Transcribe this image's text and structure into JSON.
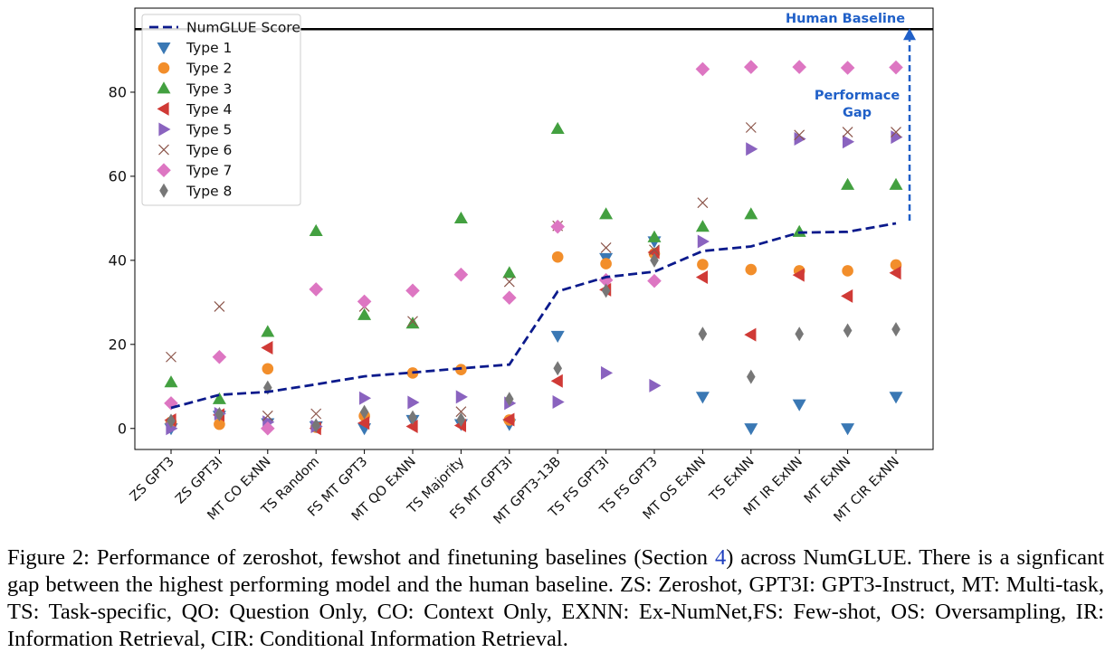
{
  "chart_data": {
    "type": "scatter",
    "categories": [
      "ZS GPT3",
      "ZS GPT3I",
      "MT CO ExNN",
      "TS Random",
      "FS MT GPT3",
      "MT QO ExNN",
      "TS Majority",
      "FS MT GPT3I",
      "MT GPT3-13B",
      "TS FS GPT3I",
      "TS FS GPT3",
      "MT OS ExNN",
      "TS ExNN",
      "MT IR ExNN",
      "MT ExNN",
      "MT CIR ExNN"
    ],
    "ylim": [
      -5,
      100
    ],
    "yticks": [
      0,
      20,
      40,
      60,
      80
    ],
    "grid": false,
    "legend_position": "top-left",
    "line_series": {
      "name": "NumGLUE Score",
      "color": "#0b1a8c",
      "values": [
        4.9,
        8.0,
        8.7,
        10.5,
        12.4,
        13.3,
        14.3,
        15.2,
        32.6,
        36.0,
        37.3,
        42.2,
        43.3,
        46.6,
        46.8,
        48.8
      ]
    },
    "series": [
      {
        "name": "Type 1",
        "marker": "triangle-down",
        "color": "#3a78b4",
        "values": [
          0,
          3,
          1.2,
          0.5,
          0,
          2,
          1,
          1,
          22,
          40.5,
          44.5,
          7.5,
          0,
          5.7,
          0,
          7.5
        ]
      },
      {
        "name": "Type 2",
        "marker": "circle",
        "color": "#f28e2b",
        "values": [
          1.5,
          1,
          14.2,
          0.3,
          3,
          13.2,
          14,
          2,
          40.8,
          39.2,
          41.6,
          39,
          37.8,
          37.5,
          37.5,
          38.9
        ]
      },
      {
        "name": "Type 3",
        "marker": "triangle-up",
        "color": "#43a040",
        "values": [
          11,
          7,
          23,
          47,
          27,
          25,
          50,
          37,
          71.3,
          51,
          45.5,
          48,
          51,
          46.8,
          58,
          58
        ]
      },
      {
        "name": "Type 4",
        "marker": "triangle-left",
        "color": "#d03a36",
        "values": [
          2,
          3.2,
          19.2,
          0,
          1.3,
          0.5,
          0.7,
          2.1,
          11.3,
          33,
          41.9,
          36,
          22.3,
          36.5,
          31.5,
          37
        ]
      },
      {
        "name": "Type 5",
        "marker": "triangle-right",
        "color": "#8a63bf",
        "values": [
          0,
          3.5,
          1.5,
          0.5,
          7.2,
          6.2,
          7.5,
          6,
          6.3,
          13.2,
          10.2,
          44.5,
          66.5,
          68.9,
          68.2,
          69.3
        ]
      },
      {
        "name": "Type 6",
        "marker": "x",
        "color": "#8c564b",
        "values": [
          17,
          29,
          3,
          3.5,
          29,
          25.5,
          4,
          34.9,
          48.2,
          43,
          42.5,
          53.7,
          71.6,
          69.8,
          70.5,
          70.5
        ]
      },
      {
        "name": "Type 7",
        "marker": "diamond",
        "color": "#dd76c2",
        "values": [
          6,
          17,
          0,
          33.1,
          30.2,
          32.8,
          36.6,
          31.1,
          48,
          35.3,
          35.1,
          85.5,
          86,
          86,
          85.8,
          85.9
        ]
      },
      {
        "name": "Type 8",
        "marker": "thin-diamond",
        "color": "#777777",
        "values": [
          1.8,
          3.4,
          9.7,
          0.7,
          3.9,
          2.6,
          2.1,
          7,
          14.3,
          32.8,
          40,
          22.5,
          12.3,
          22.5,
          23.3,
          23.6
        ]
      }
    ],
    "human_baseline": {
      "value": 95,
      "label": "Human Baseline",
      "color": "#2060c8"
    },
    "gap_annotation": {
      "line1": "Performace",
      "line2": "Gap",
      "color": "#2060c8"
    }
  },
  "caption": {
    "prefix": "Figure 2:  Performance of zeroshot, fewshot and finetuning baselines (Section ",
    "ref": "4",
    "rest": ") across NumGLUE. There is a signficant gap between the highest performing model and the human baseline.  ZS: Zeroshot, GPT3I: GPT3-Instruct, MT: Multi-task, TS: Task-specific, QO: Question Only, CO: Context Only, EXNN: Ex-NumNet,FS: Few-shot, OS: Oversampling, IR: Information Retrieval, CIR: Conditional Information Retrieval."
  }
}
